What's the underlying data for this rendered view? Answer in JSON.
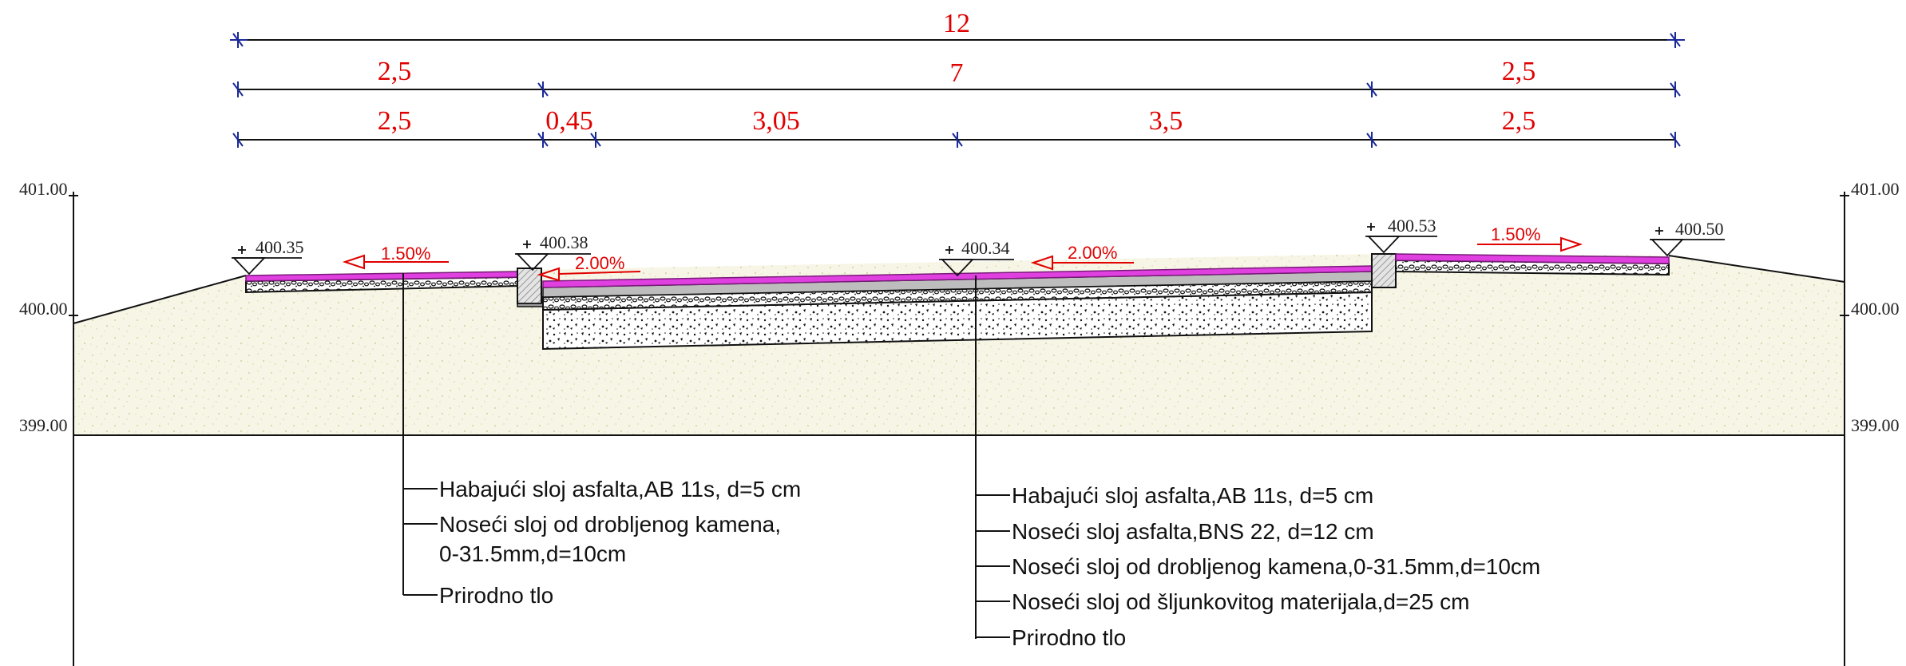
{
  "dimensions": {
    "row1": [
      "12"
    ],
    "row2": [
      "2,5",
      "7",
      "2,5"
    ],
    "row3": [
      "2,5",
      "0,45",
      "3,05",
      "3,5",
      "2,5"
    ]
  },
  "axis": {
    "left": [
      "401.00",
      "400.00",
      "399.00"
    ],
    "right": [
      "401.00",
      "400.00",
      "399.00"
    ]
  },
  "elevations": [
    "400.35",
    "400.38",
    "400.34",
    "400.53",
    "400.50"
  ],
  "slopes": [
    "1.50%",
    "2.00%",
    "2.00%",
    "1.50%"
  ],
  "notes_left": [
    "Habajući sloj asfalta,AB 11s, d=5 cm",
    "Noseći sloj od drobljenog kamena,",
    "0-31.5mm,d=10cm",
    "Prirodno tlo"
  ],
  "notes_right": [
    "Habajući sloj asfalta,AB 11s, d=5 cm",
    "Noseći sloj asfalta,BNS 22,   d=12 cm",
    "Noseći sloj od drobljenog kamena,0-31.5mm,d=10cm",
    "Noseći sloj od šljunkovitog materijala,d=25 cm",
    "Prirodno tlo"
  ],
  "colors": {
    "dimension": "#e00000",
    "wearing_course": "#e040e0",
    "base_asphalt": "#bdbdbd",
    "fill_soil": "#f6f4e4",
    "lines": "#111111",
    "dim_ticks": "#1a2a9a"
  }
}
